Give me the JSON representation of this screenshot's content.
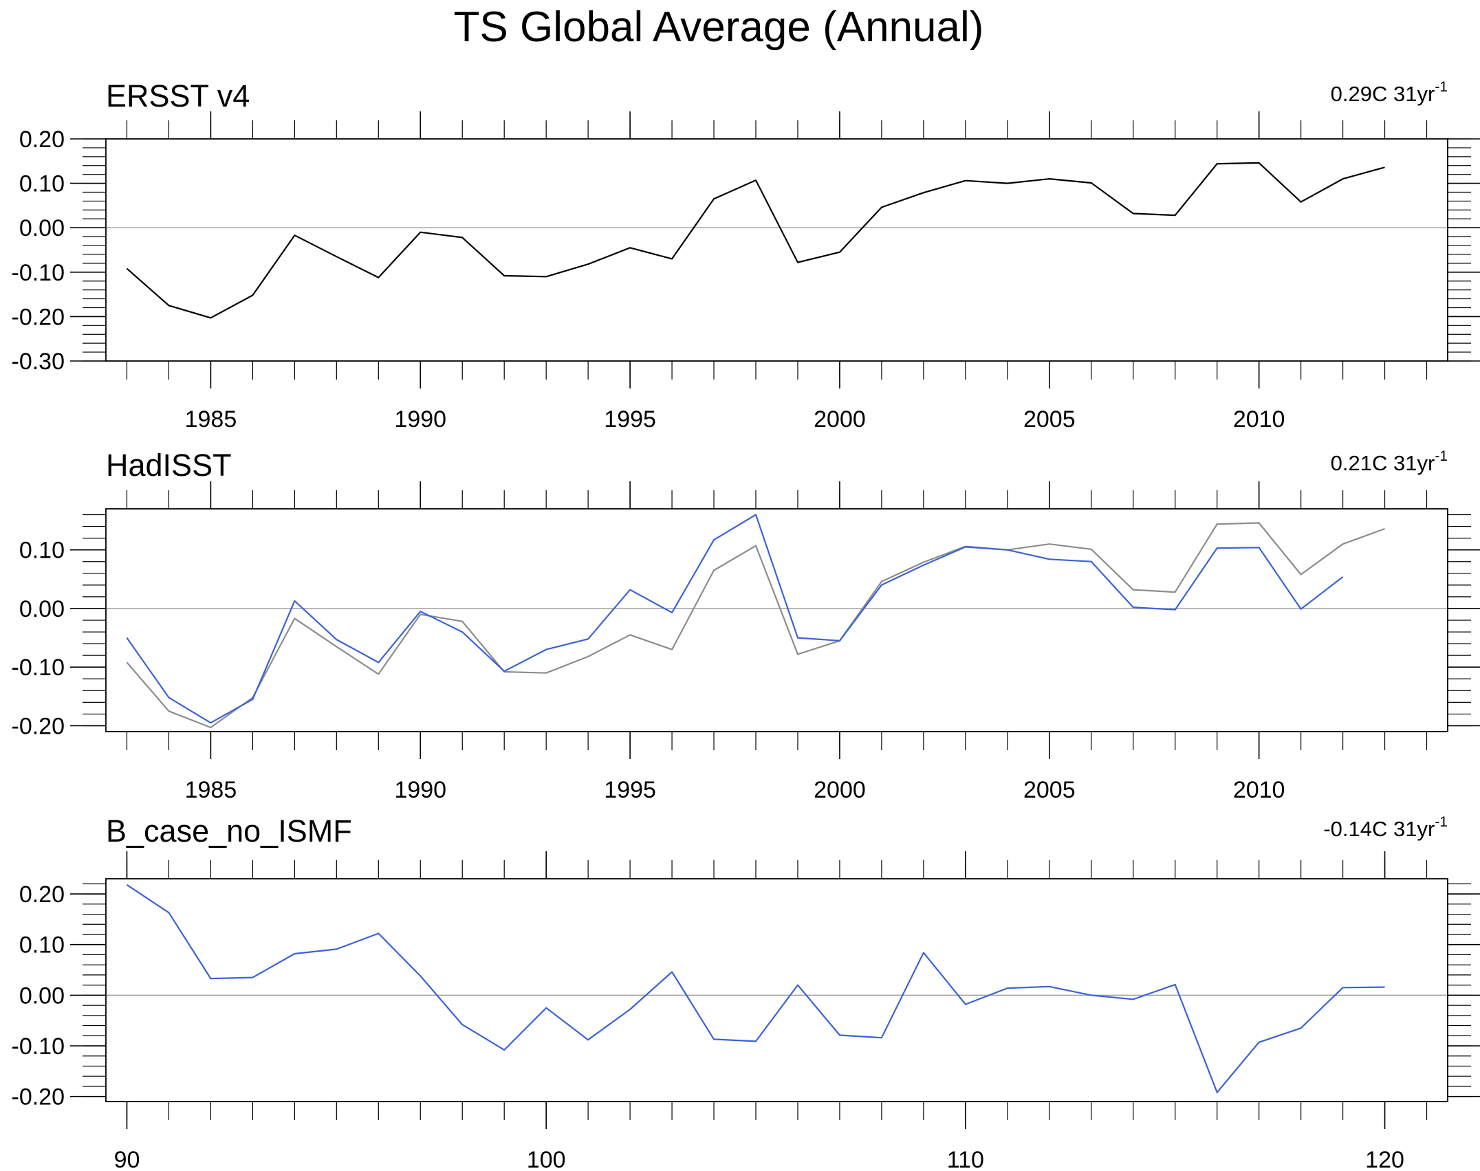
{
  "title": "TS Global Average (Annual)",
  "colors": {
    "obs": "#000000",
    "obs_ref": "#8c8c8c",
    "model": "#3b62d6",
    "zero": "#a0a0a0",
    "frame": "#000000"
  },
  "panels": [
    {
      "name": "ersst",
      "title": "ERSST v4",
      "trend": {
        "value": "0.29C 31yr",
        "sup": "-1"
      }
    },
    {
      "name": "hadisst",
      "title": "HadISST",
      "trend": {
        "value": "0.21C 31yr",
        "sup": "-1"
      }
    },
    {
      "name": "model",
      "title": "B_case_no_ISMF",
      "trend": {
        "value": "-0.14C 31yr",
        "sup": "-1"
      }
    }
  ],
  "chart_data": [
    {
      "type": "line",
      "title": "ERSST v4",
      "xlim": [
        1982.5,
        2014.5
      ],
      "ylim": [
        -0.3,
        0.2
      ],
      "xticks": [
        1985,
        1990,
        1995,
        2000,
        2005,
        2010
      ],
      "xtick_labels": [
        "1985",
        "1990",
        "1995",
        "2000",
        "2005",
        "2010"
      ],
      "yticks": [
        0.2,
        0.1,
        0.0,
        -0.1,
        -0.2,
        -0.3
      ],
      "ytick_labels": [
        "0.20",
        "0.10",
        "0.00",
        "-0.10",
        "-0.20",
        "-0.30"
      ],
      "x": [
        1983,
        1984,
        1985,
        1986,
        1987,
        1988,
        1989,
        1990,
        1991,
        1992,
        1993,
        1994,
        1995,
        1996,
        1997,
        1998,
        1999,
        2000,
        2001,
        2002,
        2003,
        2004,
        2005,
        2006,
        2007,
        2008,
        2009,
        2010,
        2011,
        2012,
        2013
      ],
      "series": [
        {
          "name": "ERSST v4",
          "color": "#000000",
          "values": [
            -0.092,
            -0.175,
            -0.203,
            -0.152,
            -0.017,
            -0.065,
            -0.112,
            -0.01,
            -0.022,
            -0.108,
            -0.11,
            -0.082,
            -0.045,
            -0.07,
            0.065,
            0.107,
            -0.078,
            -0.055,
            0.046,
            0.079,
            0.106,
            0.1,
            0.11,
            0.101,
            0.032,
            0.028,
            0.144,
            0.146,
            0.058,
            0.11,
            0.136
          ]
        }
      ]
    },
    {
      "type": "line",
      "title": "HadISST",
      "xlim": [
        1982.5,
        2014.5
      ],
      "ylim": [
        -0.21,
        0.17
      ],
      "xticks": [
        1985,
        1990,
        1995,
        2000,
        2005,
        2010
      ],
      "xtick_labels": [
        "1985",
        "1990",
        "1995",
        "2000",
        "2005",
        "2010"
      ],
      "yticks": [
        0.1,
        0.0,
        -0.1,
        -0.2
      ],
      "ytick_labels": [
        "0.10",
        "0.00",
        "-0.10",
        "-0.20"
      ],
      "x": [
        1983,
        1984,
        1985,
        1986,
        1987,
        1988,
        1989,
        1990,
        1991,
        1992,
        1993,
        1994,
        1995,
        1996,
        1997,
        1998,
        1999,
        2000,
        2001,
        2002,
        2003,
        2004,
        2005,
        2006,
        2007,
        2008,
        2009,
        2010,
        2011,
        2012,
        2013
      ],
      "series": [
        {
          "name": "ERSST v4",
          "color": "#8c8c8c",
          "values": [
            -0.092,
            -0.175,
            -0.203,
            -0.152,
            -0.017,
            -0.065,
            -0.112,
            -0.01,
            -0.022,
            -0.108,
            -0.11,
            -0.082,
            -0.045,
            -0.07,
            0.065,
            0.107,
            -0.078,
            -0.055,
            0.046,
            0.079,
            0.106,
            0.1,
            0.11,
            0.101,
            0.032,
            0.028,
            0.144,
            0.146,
            0.058,
            0.11,
            0.136
          ]
        },
        {
          "name": "HadISST",
          "color": "#3b62d6",
          "values": [
            -0.05,
            -0.152,
            -0.195,
            -0.155,
            0.013,
            -0.053,
            -0.092,
            -0.005,
            -0.04,
            -0.107,
            -0.07,
            -0.052,
            0.032,
            -0.007,
            0.117,
            0.16,
            -0.05,
            -0.055,
            0.04,
            0.074,
            0.105,
            0.1,
            0.084,
            0.08,
            0.002,
            -0.002,
            0.103,
            0.104,
            -0.001,
            0.054,
            null
          ]
        }
      ]
    },
    {
      "type": "line",
      "title": "B_case_no_ISMF",
      "xlim": [
        89.5,
        121.5
      ],
      "ylim": [
        -0.21,
        0.23
      ],
      "xticks": [
        90,
        100,
        110,
        120
      ],
      "xtick_labels": [
        "90",
        "100",
        "110",
        "120"
      ],
      "yticks": [
        0.2,
        0.1,
        0.0,
        -0.1,
        -0.2
      ],
      "ytick_labels": [
        "0.20",
        "0.10",
        "0.00",
        "-0.10",
        "-0.20"
      ],
      "x": [
        90,
        91,
        92,
        93,
        94,
        95,
        96,
        97,
        98,
        99,
        100,
        101,
        102,
        103,
        104,
        105,
        106,
        107,
        108,
        109,
        110,
        111,
        112,
        113,
        114,
        115,
        116,
        117,
        118,
        119,
        120
      ],
      "series": [
        {
          "name": "B_case_no_ISMF",
          "color": "#3b62d6",
          "values": [
            0.218,
            0.163,
            0.033,
            0.035,
            0.082,
            0.091,
            0.122,
            0.038,
            -0.058,
            -0.108,
            -0.025,
            -0.088,
            -0.028,
            0.046,
            -0.087,
            -0.091,
            0.02,
            -0.079,
            -0.084,
            0.084,
            -0.018,
            0.014,
            0.017,
            0.0,
            -0.008,
            0.021,
            -0.192,
            -0.093,
            -0.065,
            0.015,
            0.016
          ]
        }
      ]
    }
  ]
}
